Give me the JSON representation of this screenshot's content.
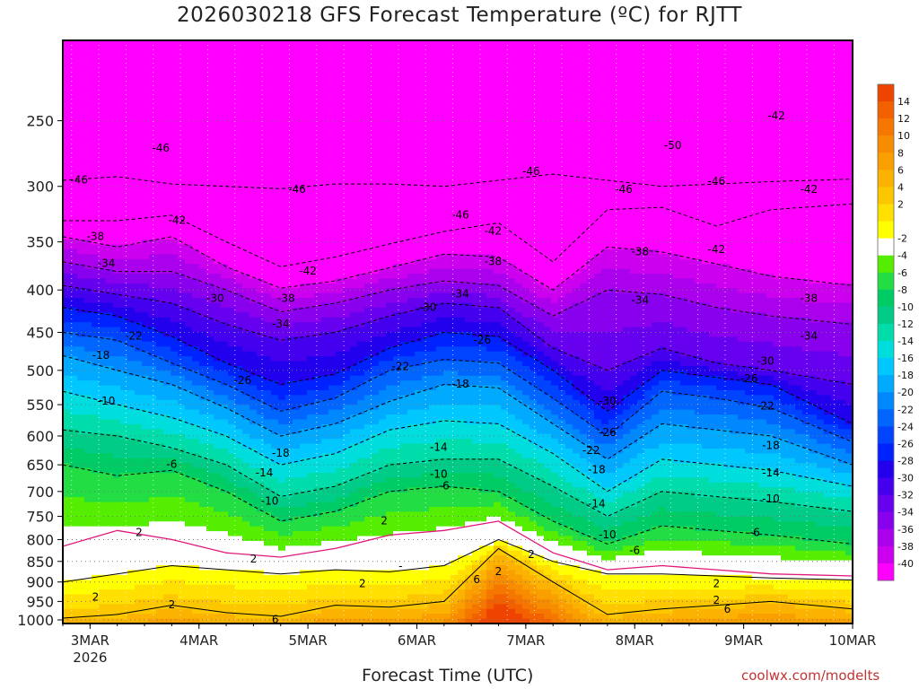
{
  "chart_data": {
    "type": "heatmap",
    "title": "2026030218 GFS Forecast Temperature (ºC) for RJTT",
    "xlabel": "Forecast Time (UTC)",
    "credit": "coolwx.com/modelts",
    "x_ticks": [
      "3MAR",
      "4MAR",
      "5MAR",
      "6MAR",
      "7MAR",
      "8MAR",
      "9MAR",
      "10MAR"
    ],
    "x_year": "2026",
    "y_ticks": [
      250,
      300,
      350,
      400,
      450,
      500,
      550,
      600,
      650,
      700,
      750,
      800,
      850,
      900,
      950,
      1000
    ],
    "y_range_hpa": [
      1010,
      200
    ],
    "x_range_days": [
      0,
      7.25
    ],
    "colorbar_labels": [
      "14",
      "12",
      "10",
      "8",
      "6",
      "4",
      "2",
      "-2",
      "-4",
      "-6",
      "-8",
      "-10",
      "-12",
      "-14",
      "-16",
      "-18",
      "-20",
      "-22",
      "-24",
      "-26",
      "-28",
      "-30",
      "-32",
      "-34",
      "-36",
      "-38",
      "-40"
    ],
    "colorbar_colors": [
      "#ee4400",
      "#f26000",
      "#f57700",
      "#f88c00",
      "#fa9f00",
      "#fcb200",
      "#fdc700",
      "#ffe000",
      "#ffff00",
      "#ffffff",
      "#55ee00",
      "#22dd44",
      "#00cc66",
      "#00cc88",
      "#00ddaa",
      "#00dddd",
      "#00c8ff",
      "#00aaff",
      "#0088ff",
      "#0066ff",
      "#0044ff",
      "#0022ff",
      "#2200ee",
      "#4400ee",
      "#6600ee",
      "#8800ee",
      "#aa00ee",
      "#cc00ee",
      "#ff00ff"
    ],
    "ground_color": "#a0522d",
    "isotherms": [
      {
        "level": -46,
        "label": "-46",
        "points": [
          [
            0,
            295
          ],
          [
            0.5,
            292
          ],
          [
            1,
            298
          ],
          [
            1.5,
            300
          ],
          [
            2,
            302
          ],
          [
            2.5,
            298
          ],
          [
            3,
            298
          ],
          [
            3.5,
            300
          ],
          [
            4,
            295
          ],
          [
            4.5,
            290
          ],
          [
            5,
            295
          ],
          [
            5.5,
            300
          ],
          [
            6,
            298
          ],
          [
            6.5,
            296
          ],
          [
            7.25,
            294
          ]
        ]
      },
      {
        "level": -42,
        "label": "-42",
        "points": [
          [
            0,
            330
          ],
          [
            0.5,
            330
          ],
          [
            1,
            325
          ],
          [
            1.5,
            350
          ],
          [
            2,
            375
          ],
          [
            2.5,
            365
          ],
          [
            3,
            352
          ],
          [
            3.5,
            340
          ],
          [
            4,
            332
          ],
          [
            4.5,
            370
          ],
          [
            5,
            320
          ],
          [
            5.5,
            318
          ],
          [
            6,
            335
          ],
          [
            6.5,
            320
          ],
          [
            7.25,
            315
          ]
        ]
      },
      {
        "level": -38,
        "label": "-38",
        "points": [
          [
            0,
            345
          ],
          [
            0.5,
            355
          ],
          [
            1,
            345
          ],
          [
            1.5,
            375
          ],
          [
            2,
            398
          ],
          [
            2.5,
            390
          ],
          [
            3,
            376
          ],
          [
            3.5,
            362
          ],
          [
            4,
            365
          ],
          [
            4.5,
            400
          ],
          [
            5,
            355
          ],
          [
            5.5,
            360
          ],
          [
            6,
            372
          ],
          [
            6.5,
            385
          ],
          [
            7.25,
            395
          ]
        ]
      },
      {
        "level": -34,
        "label": "-34",
        "points": [
          [
            0,
            370
          ],
          [
            0.5,
            380
          ],
          [
            1,
            380
          ],
          [
            1.5,
            400
          ],
          [
            2,
            425
          ],
          [
            2.5,
            415
          ],
          [
            3,
            400
          ],
          [
            3.5,
            390
          ],
          [
            4,
            395
          ],
          [
            4.5,
            430
          ],
          [
            5,
            400
          ],
          [
            5.5,
            405
          ],
          [
            6,
            420
          ],
          [
            6.5,
            430
          ],
          [
            7.25,
            440
          ]
        ]
      },
      {
        "level": -30,
        "label": "-30",
        "points": [
          [
            0,
            395
          ],
          [
            0.5,
            405
          ],
          [
            1,
            415
          ],
          [
            1.5,
            440
          ],
          [
            2,
            460
          ],
          [
            2.5,
            450
          ],
          [
            3,
            430
          ],
          [
            3.5,
            415
          ],
          [
            4,
            420
          ],
          [
            4.5,
            470
          ],
          [
            5,
            500
          ],
          [
            5.5,
            470
          ],
          [
            6,
            490
          ],
          [
            6.5,
            500
          ],
          [
            7.25,
            520
          ]
        ]
      },
      {
        "level": -26,
        "label": "-26",
        "points": [
          [
            0,
            420
          ],
          [
            0.5,
            430
          ],
          [
            1,
            455
          ],
          [
            1.5,
            490
          ],
          [
            2,
            520
          ],
          [
            2.5,
            505
          ],
          [
            3,
            470
          ],
          [
            3.5,
            450
          ],
          [
            4,
            455
          ],
          [
            4.5,
            500
          ],
          [
            5,
            560
          ],
          [
            5.5,
            500
          ],
          [
            6,
            510
          ],
          [
            6.5,
            520
          ],
          [
            7.25,
            580
          ]
        ]
      },
      {
        "level": -22,
        "label": "-22",
        "points": [
          [
            0,
            450
          ],
          [
            0.5,
            460
          ],
          [
            1,
            490
          ],
          [
            1.5,
            520
          ],
          [
            2,
            560
          ],
          [
            2.5,
            540
          ],
          [
            3,
            500
          ],
          [
            3.5,
            485
          ],
          [
            4,
            490
          ],
          [
            4.5,
            540
          ],
          [
            5,
            600
          ],
          [
            5.5,
            530
          ],
          [
            6,
            540
          ],
          [
            6.5,
            555
          ],
          [
            7.25,
            610
          ]
        ]
      },
      {
        "level": -18,
        "label": "-18",
        "points": [
          [
            0,
            480
          ],
          [
            0.5,
            500
          ],
          [
            1,
            520
          ],
          [
            1.5,
            555
          ],
          [
            2,
            600
          ],
          [
            2.5,
            580
          ],
          [
            3,
            545
          ],
          [
            3.5,
            520
          ],
          [
            4,
            525
          ],
          [
            4.5,
            580
          ],
          [
            5,
            640
          ],
          [
            5.5,
            580
          ],
          [
            6,
            590
          ],
          [
            6.5,
            600
          ],
          [
            7.25,
            650
          ]
        ]
      },
      {
        "level": -14,
        "label": "-14",
        "points": [
          [
            0,
            530
          ],
          [
            0.5,
            550
          ],
          [
            1,
            570
          ],
          [
            1.5,
            600
          ],
          [
            2,
            650
          ],
          [
            2.5,
            630
          ],
          [
            3,
            590
          ],
          [
            3.5,
            575
          ],
          [
            4,
            580
          ],
          [
            4.5,
            630
          ],
          [
            5,
            700
          ],
          [
            5.5,
            640
          ],
          [
            6,
            650
          ],
          [
            6.5,
            660
          ],
          [
            7.25,
            690
          ]
        ]
      },
      {
        "level": -10,
        "label": "-10",
        "points": [
          [
            0,
            590
          ],
          [
            0.5,
            600
          ],
          [
            1,
            620
          ],
          [
            1.5,
            650
          ],
          [
            2,
            710
          ],
          [
            2.5,
            690
          ],
          [
            3,
            650
          ],
          [
            3.5,
            640
          ],
          [
            4,
            640
          ],
          [
            4.5,
            690
          ],
          [
            5,
            750
          ],
          [
            5.5,
            700
          ],
          [
            6,
            710
          ],
          [
            6.5,
            720
          ],
          [
            7.25,
            740
          ]
        ]
      },
      {
        "level": -6,
        "label": "-6",
        "points": [
          [
            0,
            650
          ],
          [
            0.5,
            670
          ],
          [
            1,
            660
          ],
          [
            1.5,
            700
          ],
          [
            2,
            760
          ],
          [
            2.5,
            740
          ],
          [
            3,
            700
          ],
          [
            3.5,
            690
          ],
          [
            4,
            700
          ],
          [
            4.5,
            760
          ],
          [
            5,
            810
          ],
          [
            5.5,
            770
          ],
          [
            6,
            780
          ],
          [
            6.5,
            790
          ],
          [
            7.25,
            810
          ]
        ]
      },
      {
        "level": 2,
        "label": "2",
        "points": [
          [
            0,
            900
          ],
          [
            0.5,
            880
          ],
          [
            1,
            860
          ],
          [
            1.5,
            870
          ],
          [
            2,
            880
          ],
          [
            2.5,
            870
          ],
          [
            3,
            875
          ],
          [
            3.5,
            860
          ],
          [
            4,
            800
          ],
          [
            4.5,
            850
          ],
          [
            5,
            880
          ],
          [
            5.5,
            880
          ],
          [
            6,
            885
          ],
          [
            6.5,
            890
          ],
          [
            7.25,
            895
          ]
        ]
      },
      {
        "level": 6,
        "label": "6",
        "points": [
          [
            0,
            995
          ],
          [
            0.5,
            985
          ],
          [
            1,
            960
          ],
          [
            1.5,
            980
          ],
          [
            2,
            990
          ],
          [
            2.5,
            960
          ],
          [
            3,
            965
          ],
          [
            3.5,
            950
          ],
          [
            4,
            820
          ],
          [
            4.5,
            900
          ],
          [
            5,
            985
          ],
          [
            5.5,
            970
          ],
          [
            6,
            960
          ],
          [
            6.5,
            950
          ],
          [
            7.25,
            970
          ]
        ]
      }
    ],
    "contour_labels": [
      {
        "t": 0.15,
        "p": 295,
        "text": "-46"
      },
      {
        "t": 0.9,
        "p": 270,
        "text": "-46"
      },
      {
        "t": 2.15,
        "p": 303,
        "text": "-46"
      },
      {
        "t": 3.65,
        "p": 325,
        "text": "-46"
      },
      {
        "t": 4.3,
        "p": 288,
        "text": "-46"
      },
      {
        "t": 5.15,
        "p": 303,
        "text": "-46"
      },
      {
        "t": 6.0,
        "p": 296,
        "text": "-46"
      },
      {
        "t": 5.6,
        "p": 268,
        "text": "-50"
      },
      {
        "t": 6.55,
        "p": 247,
        "text": "-42"
      },
      {
        "t": 6.85,
        "p": 303,
        "text": "-42"
      },
      {
        "t": 1.05,
        "p": 330,
        "text": "-42"
      },
      {
        "t": 2.25,
        "p": 380,
        "text": "-42"
      },
      {
        "t": 3.95,
        "p": 340,
        "text": "-42"
      },
      {
        "t": 6.0,
        "p": 358,
        "text": "-42"
      },
      {
        "t": 0.3,
        "p": 345,
        "text": "-38"
      },
      {
        "t": 2.05,
        "p": 410,
        "text": "-38"
      },
      {
        "t": 3.95,
        "p": 370,
        "text": "-38"
      },
      {
        "t": 5.3,
        "p": 360,
        "text": "-38"
      },
      {
        "t": 6.85,
        "p": 410,
        "text": "-38"
      },
      {
        "t": 0.4,
        "p": 372,
        "text": "-34"
      },
      {
        "t": 2.0,
        "p": 440,
        "text": "-34"
      },
      {
        "t": 3.65,
        "p": 405,
        "text": "-34"
      },
      {
        "t": 5.3,
        "p": 412,
        "text": "-34"
      },
      {
        "t": 6.85,
        "p": 455,
        "text": "-34"
      },
      {
        "t": 1.4,
        "p": 410,
        "text": "-30"
      },
      {
        "t": 3.35,
        "p": 420,
        "text": "-30"
      },
      {
        "t": 6.45,
        "p": 488,
        "text": "-30"
      },
      {
        "t": 5.0,
        "p": 545,
        "text": "-30"
      },
      {
        "t": 0.65,
        "p": 455,
        "text": "-22"
      },
      {
        "t": 3.1,
        "p": 495,
        "text": "-22"
      },
      {
        "t": 6.45,
        "p": 553,
        "text": "-22"
      },
      {
        "t": 4.85,
        "p": 625,
        "text": "-22"
      },
      {
        "t": 1.65,
        "p": 515,
        "text": "-26"
      },
      {
        "t": 3.85,
        "p": 460,
        "text": "-26"
      },
      {
        "t": 6.3,
        "p": 512,
        "text": "-26"
      },
      {
        "t": 5.0,
        "p": 595,
        "text": "-26"
      },
      {
        "t": 0.35,
        "p": 480,
        "text": "-18"
      },
      {
        "t": 2.0,
        "p": 630,
        "text": "-18"
      },
      {
        "t": 3.65,
        "p": 520,
        "text": "-18"
      },
      {
        "t": 6.5,
        "p": 617,
        "text": "-18"
      },
      {
        "t": 4.9,
        "p": 660,
        "text": "-18"
      },
      {
        "t": 0.4,
        "p": 545,
        "text": "-10"
      },
      {
        "t": 1.9,
        "p": 720,
        "text": "-10"
      },
      {
        "t": 3.45,
        "p": 668,
        "text": "-10"
      },
      {
        "t": 5.0,
        "p": 790,
        "text": "-10"
      },
      {
        "t": 6.5,
        "p": 715,
        "text": "-10"
      },
      {
        "t": 1.85,
        "p": 665,
        "text": "-14"
      },
      {
        "t": 3.45,
        "p": 620,
        "text": "-14"
      },
      {
        "t": 4.9,
        "p": 725,
        "text": "-14"
      },
      {
        "t": 6.5,
        "p": 665,
        "text": "-14"
      },
      {
        "t": 1.0,
        "p": 650,
        "text": "-6"
      },
      {
        "t": 3.5,
        "p": 690,
        "text": "-6"
      },
      {
        "t": 5.25,
        "p": 825,
        "text": "-6"
      },
      {
        "t": 6.35,
        "p": 785,
        "text": "-6"
      },
      {
        "t": 0.7,
        "p": 785,
        "text": "2"
      },
      {
        "t": 1.75,
        "p": 845,
        "text": "2"
      },
      {
        "t": 2.95,
        "p": 760,
        "text": "2"
      },
      {
        "t": 4.3,
        "p": 835,
        "text": "2"
      },
      {
        "t": 4.0,
        "p": 875,
        "text": "2"
      },
      {
        "t": 6.0,
        "p": 905,
        "text": "2"
      },
      {
        "t": 6.0,
        "p": 948,
        "text": "2"
      },
      {
        "t": 0.3,
        "p": 940,
        "text": "2"
      },
      {
        "t": 2.75,
        "p": 905,
        "text": "2"
      },
      {
        "t": 1.0,
        "p": 960,
        "text": "2"
      },
      {
        "t": 3.1,
        "p": 862,
        "text": "-"
      },
      {
        "t": 1.95,
        "p": 1000,
        "text": "6"
      },
      {
        "t": 3.8,
        "p": 895,
        "text": "6"
      },
      {
        "t": 6.1,
        "p": 972,
        "text": "6"
      }
    ]
  }
}
